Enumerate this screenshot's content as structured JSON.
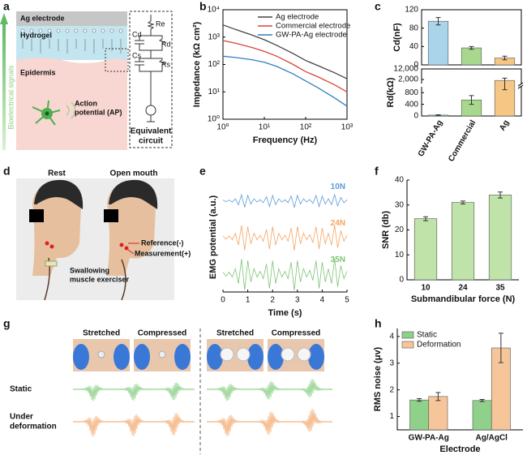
{
  "panel_labels": [
    "a",
    "b",
    "c",
    "d",
    "e",
    "f",
    "g",
    "h"
  ],
  "diagram": {
    "electrode": "Ag electrode",
    "hydrogel": "Hydrogel",
    "epidermis": "Epidermis",
    "signal": "Bioelectrical signals",
    "ap": [
      "Action",
      "potential (AP)"
    ],
    "circuit_title": [
      "Equivalent",
      "circuit"
    ],
    "circuit": [
      "Re",
      "Cd",
      "Rd",
      "Cs",
      "Rs"
    ]
  },
  "photo_d": {
    "titles": [
      "Rest",
      "Open mouth"
    ],
    "reference": "Reference(-)",
    "measurement": "Measurement(+)",
    "device": [
      "Swallowing",
      "muscle exerciser"
    ]
  },
  "photo_g": {
    "photos": [
      "Stretched",
      "Compressed",
      "Stretched",
      "Compressed"
    ],
    "static": "Static",
    "deformation": [
      "Under",
      "deformation"
    ]
  },
  "chart_data": [
    {
      "type": "line",
      "xlog": true,
      "ylog": true,
      "xlabel": "Frequency (Hz)",
      "ylabel": "Impedance (kΩ cm²)",
      "x": [
        1,
        2,
        5,
        10,
        20,
        50,
        100,
        200,
        500,
        1000
      ],
      "series": [
        {
          "name": "Ag electrode",
          "color": "#444444",
          "values": [
            2800,
            1900,
            1200,
            800,
            500,
            250,
            140,
            90,
            50,
            30
          ]
        },
        {
          "name": "Commercial electrode",
          "color": "#d9453a",
          "values": [
            750,
            600,
            420,
            300,
            200,
            100,
            55,
            35,
            18,
            10
          ]
        },
        {
          "name": "GW-PA-Ag electrode",
          "color": "#2f7fc1",
          "values": [
            200,
            180,
            150,
            120,
            85,
            45,
            25,
            14,
            6,
            3
          ]
        }
      ],
      "xlim": [
        1,
        1000
      ],
      "ylim": [
        1,
        10000
      ],
      "xticks": [
        {
          "value": 1,
          "label": "10⁰"
        },
        {
          "value": 10,
          "label": "10¹"
        },
        {
          "value": 100,
          "label": "10²"
        },
        {
          "value": 1000,
          "label": "10³"
        }
      ],
      "yticks": [
        {
          "value": 1,
          "label": "10⁰"
        },
        {
          "value": 10,
          "label": "10¹"
        },
        {
          "value": 100,
          "label": "10²"
        },
        {
          "value": 1000,
          "label": "10³"
        },
        {
          "value": 10000,
          "label": "10⁴"
        }
      ],
      "legend": "upper right"
    },
    {
      "type": "bar",
      "ylabel": "Cd(nF)",
      "values": [
        95,
        37,
        15
      ],
      "errors": [
        8,
        3,
        4
      ],
      "colors": [
        "#a9d4ea",
        "#a8d88e",
        "#f6c684"
      ],
      "ylim": [
        0,
        120
      ],
      "yticks": [
        0,
        40,
        80,
        120
      ]
    },
    {
      "type": "bar",
      "ylabel": "Rd(kΩ)",
      "categories": [
        "GW-PA-Ag",
        "Commercial",
        "Ag"
      ],
      "values": [
        30,
        550,
        1700
      ],
      "errors": [
        10,
        150,
        800
      ],
      "colors": [
        "#a9d4ea",
        "#a8d88e",
        "#f6c684"
      ],
      "ylim": [
        0,
        12000
      ],
      "ybreak": 1000,
      "yticks": [
        0,
        400,
        800,
        {
          "value": 2000,
          "label": "2,000"
        },
        {
          "value": 12000,
          "label": "12,000"
        }
      ]
    },
    {
      "type": "signal",
      "xlabel": "Time (s)",
      "ylabel": "EMG potential (a.u.)",
      "x": [
        0,
        0.125,
        0.25,
        0.375,
        0.5,
        0.625,
        0.75,
        0.875,
        1,
        1.125,
        1.25,
        1.375,
        1.5,
        1.625,
        1.75,
        1.875,
        2,
        2.125,
        2.25,
        2.375,
        2.5,
        2.625,
        2.75,
        2.875,
        3,
        3.125,
        3.25,
        3.375,
        3.5,
        3.625,
        3.75,
        3.875,
        4,
        4.125,
        4.25,
        4.375,
        4.5,
        4.625,
        4.75,
        4.875,
        5
      ],
      "series": [
        {
          "name": "10N",
          "color": "#5b9bd5",
          "values": [
            0.04,
            0.06,
            0.04,
            0.08,
            0.12,
            0.24,
            0.36,
            0.4,
            0.32,
            0.2,
            0.12,
            0.08,
            0.06,
            0.12,
            0.24,
            0.36,
            0.32,
            0.24,
            0.12,
            0.08,
            0.06,
            0.12,
            0.28,
            0.4,
            0.32,
            0.2,
            0.12,
            0.08,
            0.08,
            0.16,
            0.32,
            0.36,
            0.28,
            0.2,
            0.12,
            0.24,
            0.36,
            0.32,
            0.2,
            0.12,
            0.06
          ]
        },
        {
          "name": "24N",
          "color": "#f4a460",
          "values": [
            0.08,
            0.12,
            0.08,
            0.16,
            0.24,
            0.48,
            0.72,
            0.8,
            0.64,
            0.4,
            0.24,
            0.16,
            0.12,
            0.24,
            0.48,
            0.72,
            0.64,
            0.48,
            0.24,
            0.16,
            0.12,
            0.24,
            0.56,
            0.8,
            0.64,
            0.4,
            0.24,
            0.16,
            0.16,
            0.32,
            0.64,
            0.72,
            0.56,
            0.4,
            0.24,
            0.48,
            0.72,
            0.64,
            0.4,
            0.24,
            0.12
          ]
        },
        {
          "name": "35N",
          "color": "#7cc576",
          "values": [
            0.1,
            0.15,
            0.1,
            0.2,
            0.3,
            0.6,
            0.9,
            1,
            0.8,
            0.5,
            0.3,
            0.2,
            0.15,
            0.3,
            0.6,
            0.9,
            0.8,
            0.6,
            0.3,
            0.2,
            0.15,
            0.3,
            0.7,
            1,
            0.8,
            0.5,
            0.3,
            0.2,
            0.2,
            0.4,
            0.8,
            0.9,
            0.7,
            0.5,
            0.3,
            0.6,
            0.9,
            0.8,
            0.5,
            0.3,
            0.15
          ]
        }
      ],
      "xlim": [
        0,
        5
      ],
      "xticks": [
        0,
        1,
        2,
        3,
        4,
        5
      ]
    },
    {
      "type": "bar",
      "xlabel": "Submandibular force (N)",
      "ylabel": "SNR (db)",
      "categories": [
        "10",
        "24",
        "35"
      ],
      "values": [
        24.5,
        31,
        34
      ],
      "errors": [
        0.8,
        0.6,
        1.2
      ],
      "color": "#bfe3a8",
      "ylim": [
        0,
        40
      ],
      "yticks": [
        0,
        10,
        20,
        30,
        40
      ]
    },
    {
      "type": "bar",
      "xlabel": "Electrode",
      "ylabel": "RMS noise (μv)",
      "categories": [
        "GW-PA-Ag",
        "Ag/AgCl"
      ],
      "series": [
        {
          "name": "Static",
          "color": "#8fd18a",
          "values": [
            1.62,
            1.6
          ],
          "errors": [
            0.05,
            0.04
          ]
        },
        {
          "name": "Deformation",
          "color": "#f7c59a",
          "values": [
            1.75,
            3.57
          ],
          "errors": [
            0.15,
            0.55
          ]
        }
      ],
      "ylim": [
        0.5,
        4.3
      ],
      "yticks": [
        1,
        2,
        3,
        4
      ],
      "legend": "upper left"
    }
  ]
}
